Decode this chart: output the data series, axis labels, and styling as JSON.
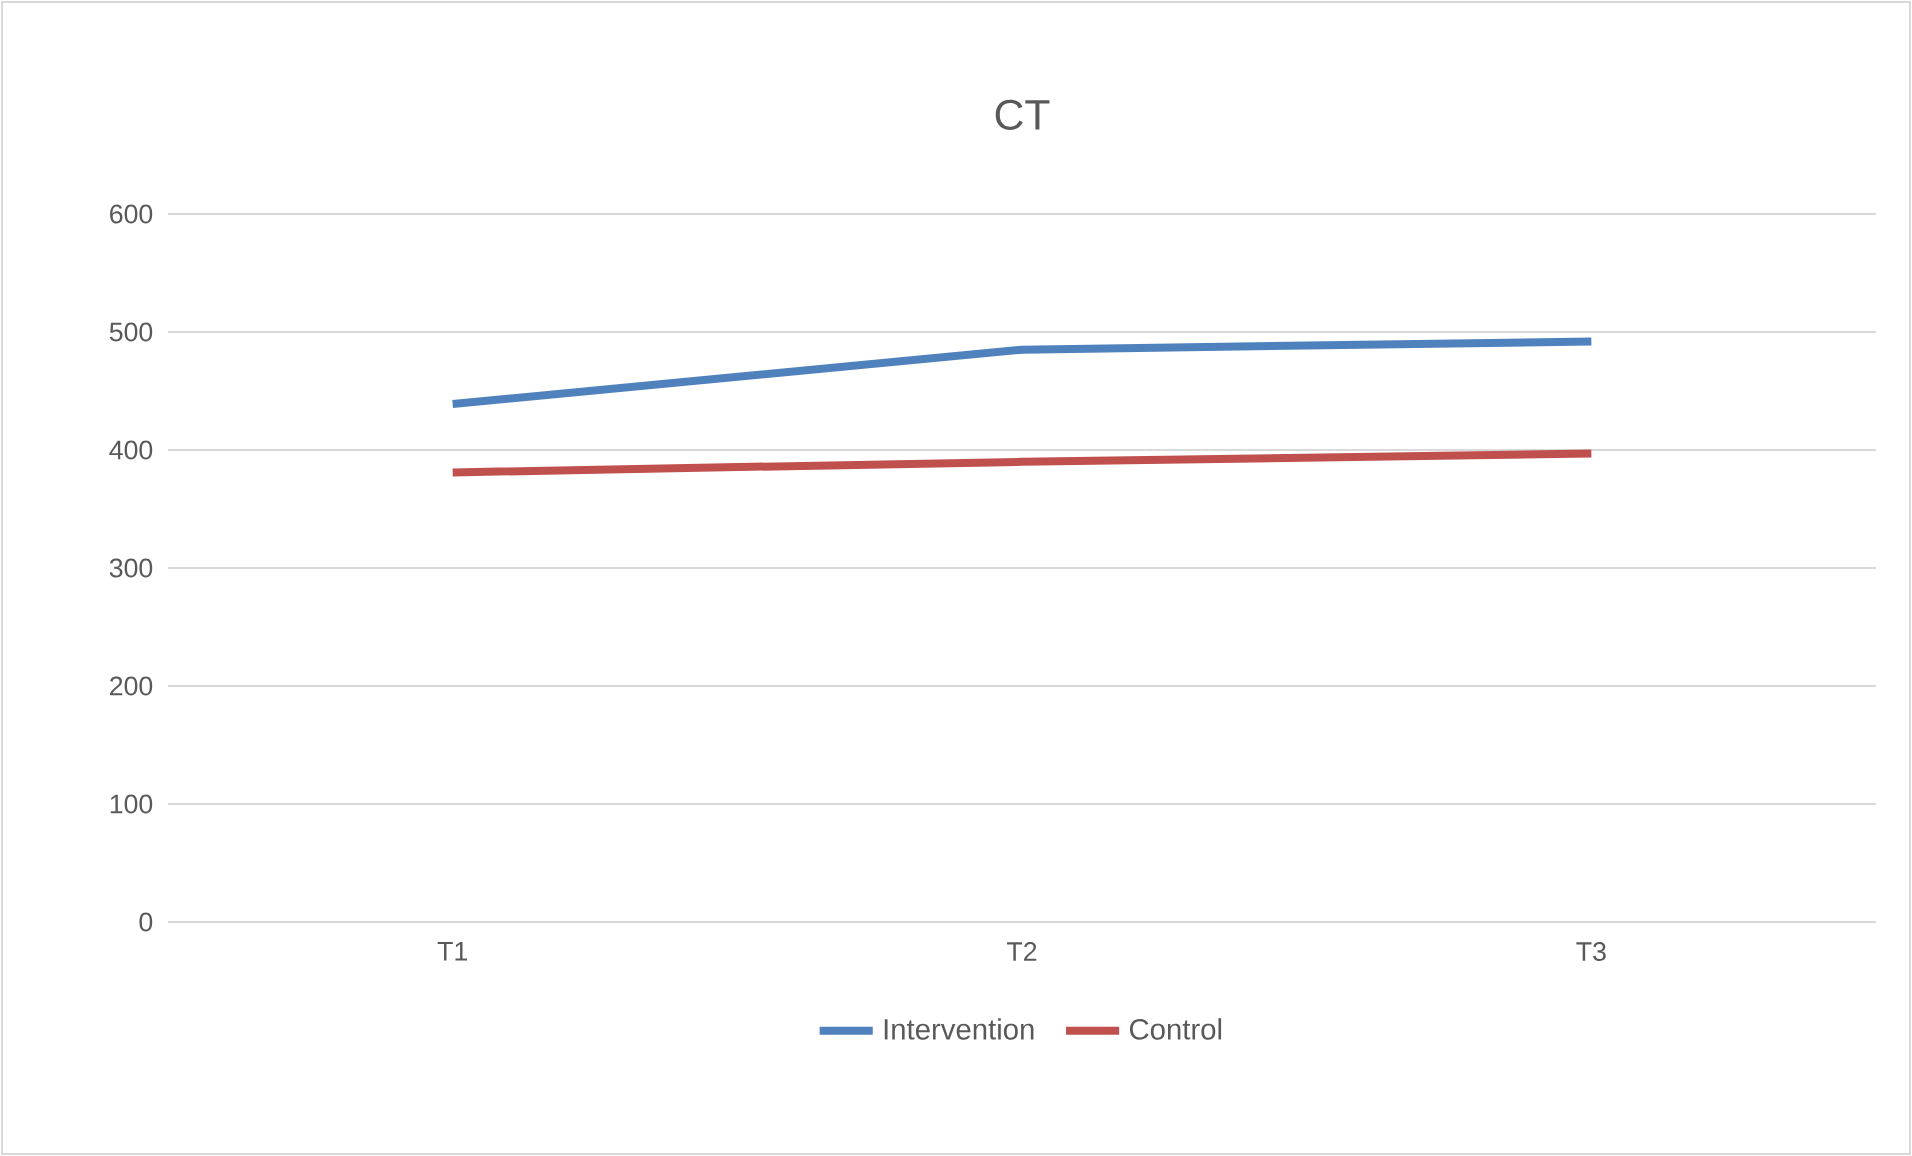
{
  "chart_data": {
    "type": "line",
    "title": "CT",
    "categories": [
      "T1",
      "T2",
      "T3"
    ],
    "series": [
      {
        "name": "Intervention",
        "color": "#4f81bd",
        "values": [
          439,
          485,
          492
        ]
      },
      {
        "name": "Control",
        "color": "#c0504d",
        "values": [
          381,
          390,
          397
        ]
      }
    ],
    "ylim": [
      0,
      600
    ],
    "yticks": [
      0,
      100,
      200,
      300,
      400,
      500,
      600
    ],
    "grid": "y",
    "legend": "bottom",
    "marker": "none",
    "line_style": "solid"
  }
}
